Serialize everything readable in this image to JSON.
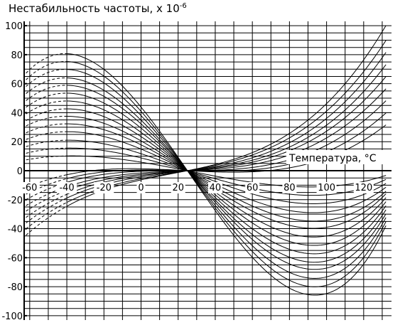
{
  "chart_data": {
    "type": "line",
    "title": "Нестабильность частоты, х 10",
    "title_exponent": "-6",
    "xlabel": "Температура, °C",
    "ylabel": "",
    "xlim": [
      -63,
      135
    ],
    "ylim": [
      -103,
      103
    ],
    "x_ticks": [
      -60,
      -40,
      -20,
      0,
      20,
      40,
      60,
      80,
      100,
      120
    ],
    "x_tick_labels": [
      "-60",
      "-40",
      "-20",
      "0",
      "20",
      "40",
      "60",
      "80",
      "100",
      "120"
    ],
    "y_ticks": [
      100,
      80,
      60,
      40,
      20,
      0,
      -20,
      -40,
      -60,
      -80,
      -100
    ],
    "y_tick_labels": [
      "100",
      "80",
      "60",
      "40",
      "20",
      "0",
      "-20",
      "-40",
      "-60",
      "-80",
      "-100"
    ],
    "grid": true,
    "legend": "none",
    "curve_color": "#000000",
    "dashed_range_note": "curves drawn dashed for temperatures below about -40",
    "series": [
      {
        "values_at_x": [
          -60,
          -40,
          25,
          100,
          130
        ],
        "y": [
          72,
          77,
          0,
          -87,
          -42
        ]
      },
      {
        "values_at_x": [
          -60,
          -40,
          25,
          100,
          130
        ],
        "y": [
          67,
          72,
          0,
          -81,
          -39
        ]
      },
      {
        "values_at_x": [
          -60,
          -40,
          25,
          100,
          130
        ],
        "y": [
          62,
          67,
          0,
          -75,
          -36
        ]
      },
      {
        "values_at_x": [
          -60,
          -40,
          25,
          100,
          130
        ],
        "y": [
          57,
          61,
          0,
          -69,
          -33
        ]
      },
      {
        "values_at_x": [
          -60,
          -40,
          25,
          100,
          130
        ],
        "y": [
          52,
          56,
          0,
          -64,
          -30
        ]
      },
      {
        "values_at_x": [
          -60,
          -40,
          25,
          100,
          130
        ],
        "y": [
          47,
          51,
          0,
          -58,
          -27
        ]
      },
      {
        "values_at_x": [
          -60,
          -40,
          25,
          100,
          130
        ],
        "y": [
          42,
          46,
          0,
          -52,
          -24
        ]
      },
      {
        "values_at_x": [
          -60,
          -40,
          25,
          100,
          130
        ],
        "y": [
          37,
          41,
          0,
          -46,
          -21
        ]
      },
      {
        "values_at_x": [
          -60,
          -40,
          25,
          100,
          130
        ],
        "y": [
          33,
          36,
          0,
          -40,
          -18
        ]
      },
      {
        "values_at_x": [
          -60,
          -40,
          25,
          100,
          130
        ],
        "y": [
          28,
          31,
          0,
          -35,
          -16
        ]
      },
      {
        "values_at_x": [
          -60,
          -40,
          25,
          100,
          130
        ],
        "y": [
          23,
          26,
          0,
          -29,
          -13
        ]
      },
      {
        "values_at_x": [
          -60,
          -40,
          25,
          100,
          130
        ],
        "y": [
          18,
          20,
          0,
          -23,
          -10
        ]
      },
      {
        "values_at_x": [
          -60,
          -40,
          25,
          100,
          130
        ],
        "y": [
          13,
          15,
          0,
          -17,
          -7
        ]
      },
      {
        "values_at_x": [
          -60,
          -40,
          25,
          100,
          130
        ],
        "y": [
          8,
          10,
          0,
          -11,
          -4
        ]
      },
      {
        "values_at_x": [
          -60,
          -40,
          25,
          100,
          130
        ],
        "y": [
          -10,
          -4,
          0,
          8,
          30
        ]
      },
      {
        "values_at_x": [
          -60,
          -40,
          25,
          100,
          130
        ],
        "y": [
          -14,
          -7,
          0,
          12,
          38
        ]
      },
      {
        "values_at_x": [
          -60,
          -40,
          25,
          100,
          130
        ],
        "y": [
          -18,
          -9,
          0,
          17,
          46
        ]
      },
      {
        "values_at_x": [
          -60,
          -40,
          25,
          100,
          130
        ],
        "y": [
          -22,
          -12,
          0,
          22,
          54
        ]
      },
      {
        "values_at_x": [
          -60,
          -40,
          25,
          100,
          130
        ],
        "y": [
          -26,
          -14,
          0,
          27,
          62
        ]
      },
      {
        "values_at_x": [
          -60,
          -40,
          25,
          100,
          130
        ],
        "y": [
          -30,
          -17,
          0,
          31,
          70
        ]
      },
      {
        "values_at_x": [
          -60,
          -40,
          25,
          100,
          130
        ],
        "y": [
          -34,
          -19,
          0,
          36,
          78
        ]
      },
      {
        "values_at_x": [
          -60,
          -40,
          25,
          100,
          130
        ],
        "y": [
          -38,
          -22,
          0,
          41,
          86
        ]
      },
      {
        "values_at_x": [
          -60,
          -40,
          25,
          100,
          130
        ],
        "y": [
          -42,
          -25,
          0,
          46,
          96
        ]
      }
    ]
  }
}
